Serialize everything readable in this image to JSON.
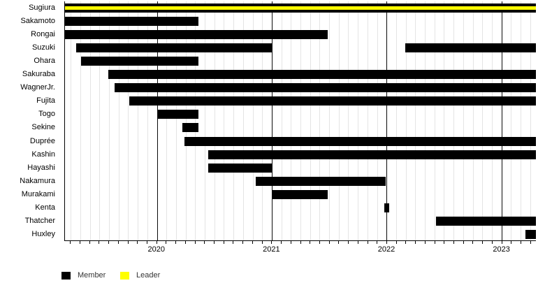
{
  "colors": {
    "member": "#000000",
    "leader": "#ffff00",
    "grid_minor": "#e4e4e4",
    "grid_major": "#0a0a0a",
    "axis": "#000000",
    "background": "#ffffff"
  },
  "chart_data": {
    "type": "bar",
    "subtype": "horizontal_timeline_gantt",
    "title": "",
    "x_axis": {
      "min": 2019.2,
      "max": 2023.3,
      "year_ticks": [
        2020,
        2021,
        2022,
        2023
      ],
      "tick_labels": [
        "2020",
        "2021",
        "2022",
        "2023"
      ],
      "minor_tick_interval_years": 0.0833
    },
    "grid": {
      "minor_monthly": true,
      "major_yearly": true
    },
    "legend_position": "bottom-left",
    "legend": [
      {
        "label": "Member",
        "color": "#000000"
      },
      {
        "label": "Leader",
        "color": "#ffff00"
      }
    ],
    "rows": [
      {
        "name": "Sugiura",
        "periods": [
          [
            2019.2,
            2023.3
          ]
        ],
        "leader_periods": [
          [
            2019.2,
            2023.3
          ]
        ]
      },
      {
        "name": "Sakamoto",
        "periods": [
          [
            2019.2,
            2020.36
          ]
        ]
      },
      {
        "name": "Rongai",
        "periods": [
          [
            2019.2,
            2021.49
          ]
        ]
      },
      {
        "name": "Suzuki",
        "periods": [
          [
            2019.3,
            2021.0
          ],
          [
            2022.16,
            2023.3
          ]
        ]
      },
      {
        "name": "Ohara",
        "periods": [
          [
            2019.34,
            2020.36
          ]
        ]
      },
      {
        "name": "Sakuraba",
        "periods": [
          [
            2019.58,
            2023.3
          ]
        ]
      },
      {
        "name": "WagnerJr.",
        "periods": [
          [
            2019.63,
            2023.3
          ]
        ]
      },
      {
        "name": "Fujita",
        "periods": [
          [
            2019.76,
            2023.3
          ]
        ]
      },
      {
        "name": "Togo",
        "periods": [
          [
            2020.01,
            2020.36
          ]
        ]
      },
      {
        "name": "Sekine",
        "periods": [
          [
            2020.22,
            2020.36
          ]
        ]
      },
      {
        "name": "Duprée",
        "periods": [
          [
            2020.24,
            2023.3
          ]
        ]
      },
      {
        "name": "Kashin",
        "periods": [
          [
            2020.45,
            2023.3
          ]
        ]
      },
      {
        "name": "Hayashi",
        "periods": [
          [
            2020.45,
            2021.0
          ]
        ]
      },
      {
        "name": "Nakamura",
        "periods": [
          [
            2020.86,
            2021.99
          ]
        ]
      },
      {
        "name": "Murakami",
        "periods": [
          [
            2021.0,
            2021.49
          ]
        ]
      },
      {
        "name": "Kenta",
        "periods": [
          [
            2021.98,
            2022.02
          ]
        ]
      },
      {
        "name": "Thatcher",
        "periods": [
          [
            2022.43,
            2023.3
          ]
        ]
      },
      {
        "name": "Huxley",
        "periods": [
          [
            2023.21,
            2023.3
          ]
        ]
      }
    ]
  }
}
